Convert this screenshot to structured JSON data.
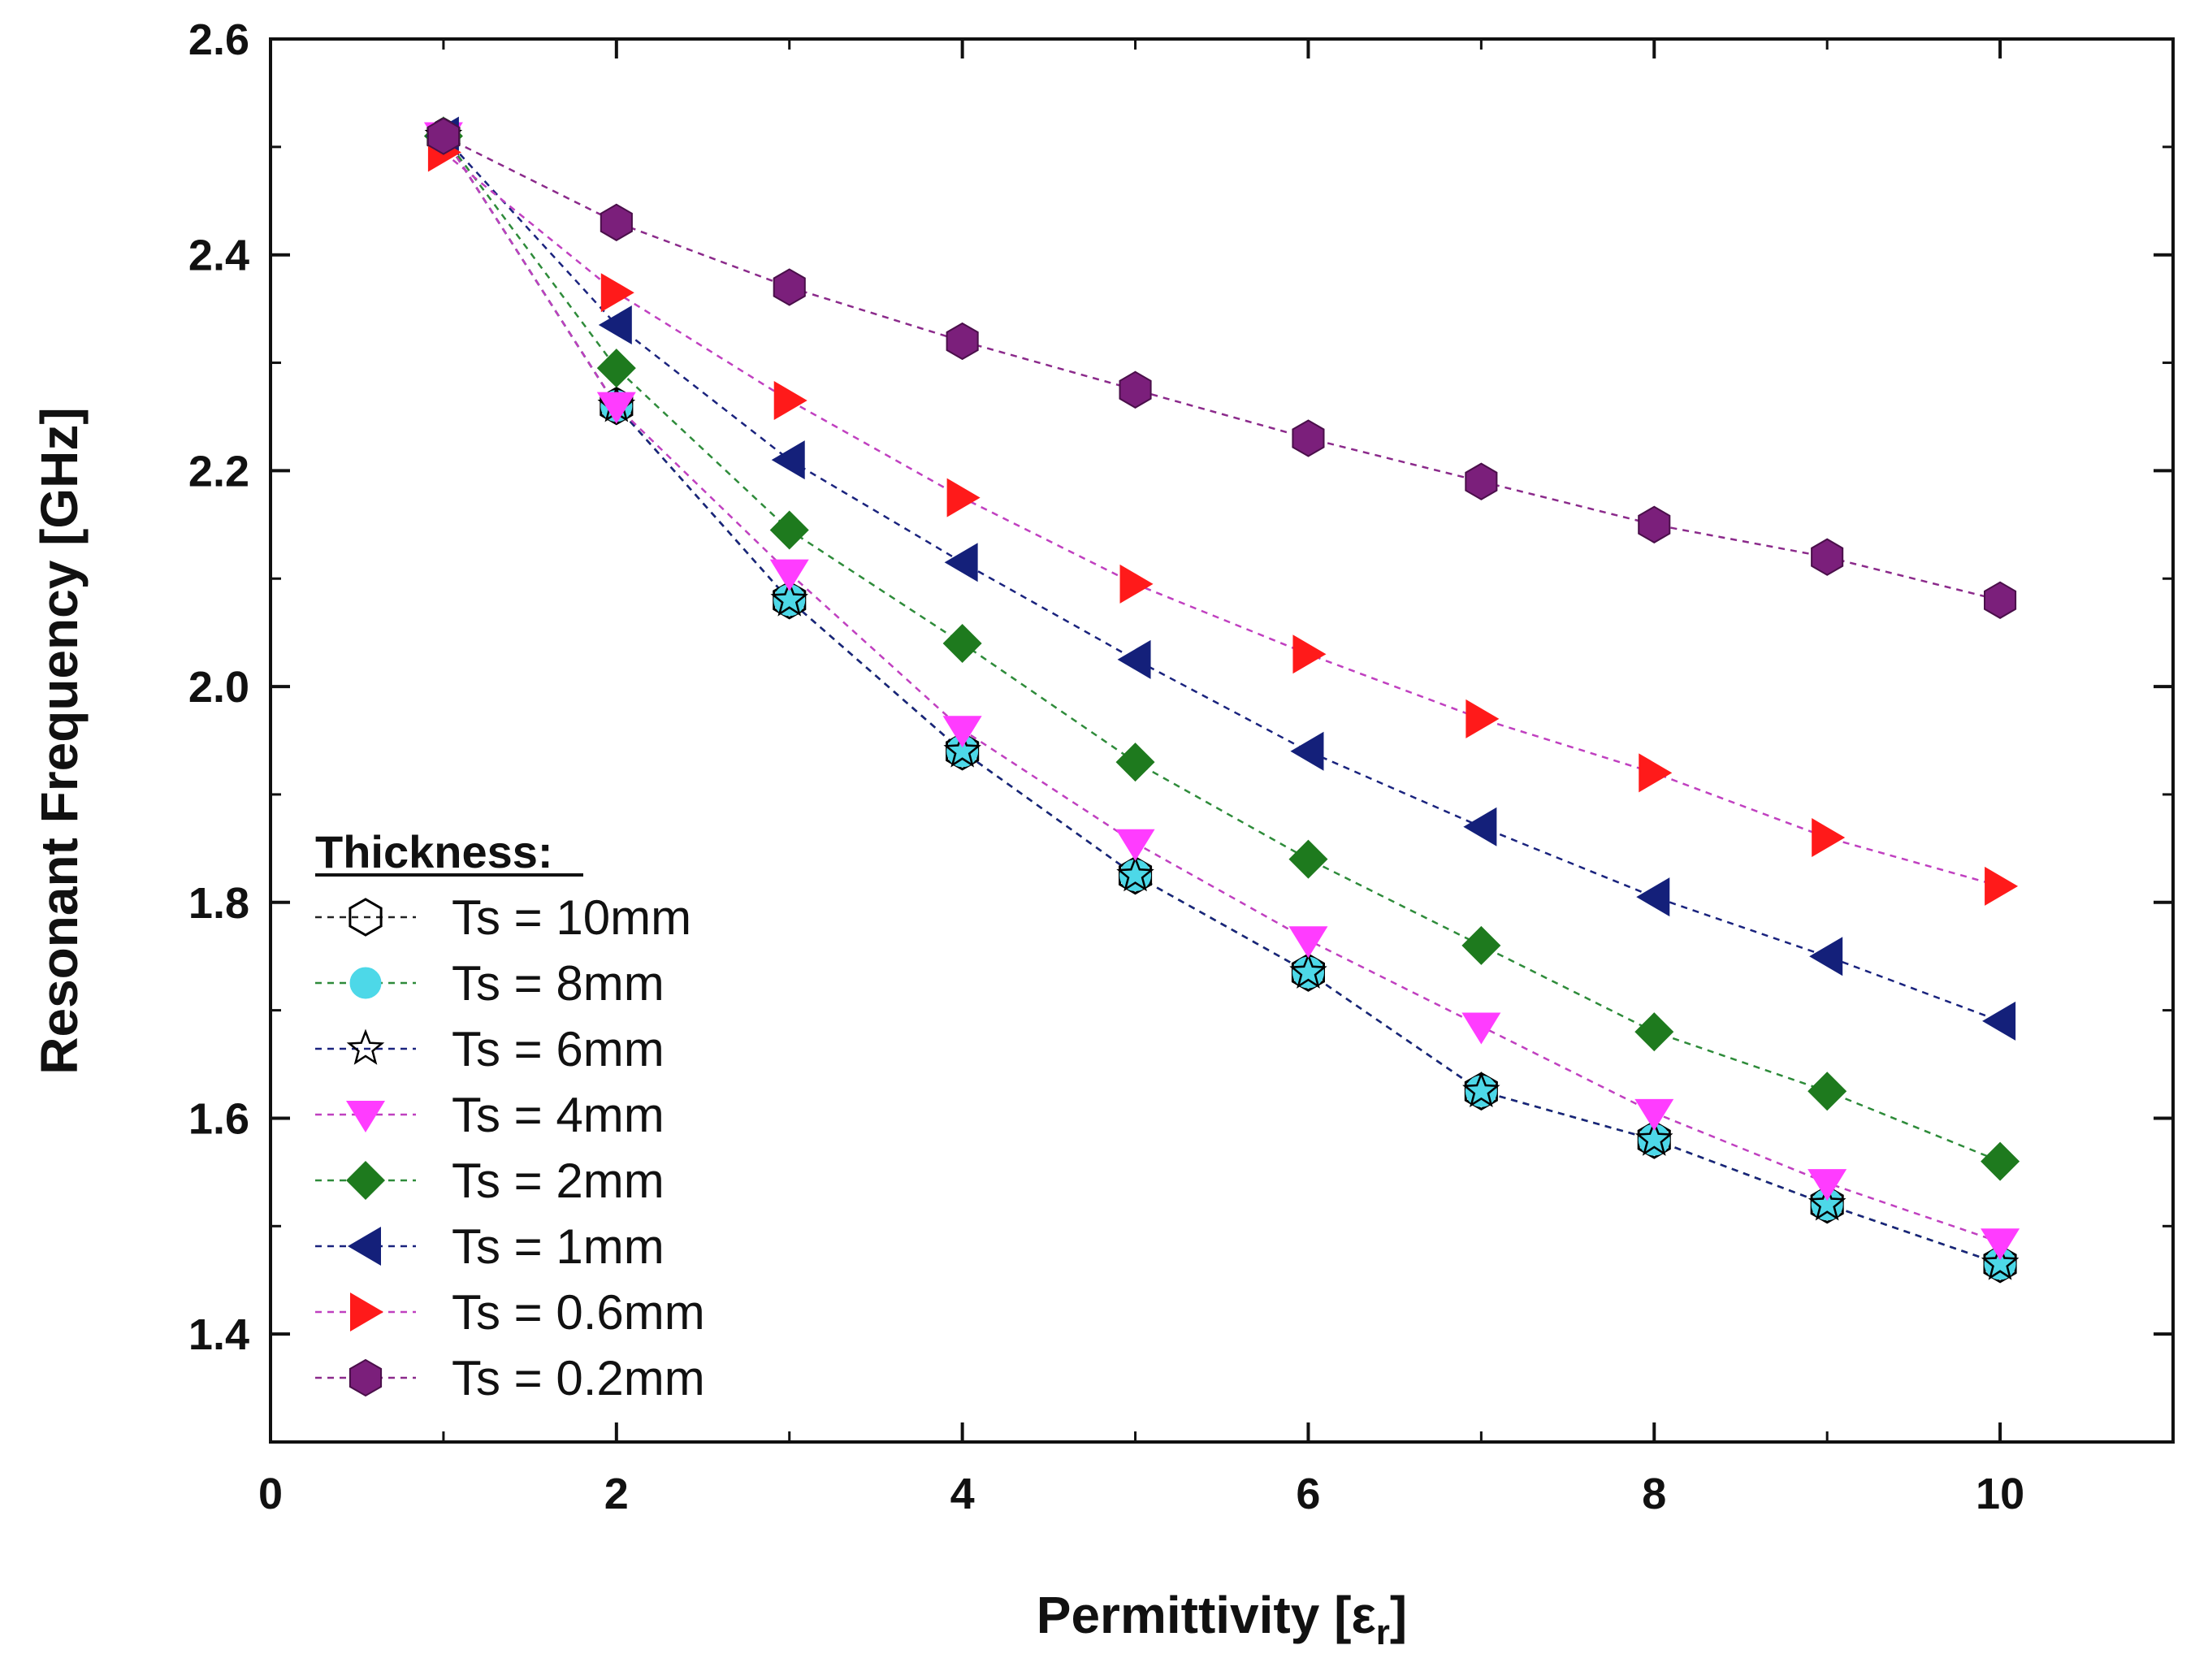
{
  "chart_data": {
    "type": "scatter",
    "xlabel": "Permittivity [ε",
    "xlabel_sub": "r",
    "xlabel_close": "]",
    "ylabel": "Resonant Frequency [GHz]",
    "xlim": [
      0,
      11
    ],
    "ylim": [
      1.3,
      2.6
    ],
    "xticks": [
      "0",
      "2",
      "4",
      "6",
      "8",
      "10"
    ],
    "xtick_values": [
      0,
      2,
      4,
      6,
      8,
      10
    ],
    "yticks": [
      "1.4",
      "1.6",
      "1.8",
      "2.0",
      "2.2",
      "2.4",
      "2.6"
    ],
    "ytick_values": [
      1.4,
      1.6,
      1.8,
      2.0,
      2.2,
      2.4,
      2.6
    ],
    "legend_title": "Thickness:",
    "legend_position": "bottom-left",
    "line_style": "dashed",
    "x": [
      1,
      2,
      3,
      4,
      5,
      6,
      7,
      8,
      9,
      10
    ],
    "series": [
      {
        "name": "Ts = 10mm",
        "marker": "hexagon-open",
        "color": "#000000",
        "line_color": "#222222",
        "values": [
          2.51,
          2.26,
          2.08,
          1.94,
          1.825,
          1.735,
          1.625,
          1.58,
          1.52,
          1.465
        ]
      },
      {
        "name": "Ts = 8mm",
        "marker": "circle",
        "color": "#4dd8e8",
        "line_color": "#2e8b3a",
        "values": [
          2.51,
          2.26,
          2.08,
          1.94,
          1.825,
          1.735,
          1.625,
          1.58,
          1.52,
          1.465
        ]
      },
      {
        "name": "Ts = 6mm",
        "marker": "star-open",
        "color": "#000000",
        "line_color": "#1a237e",
        "values": [
          2.51,
          2.26,
          2.08,
          1.94,
          1.825,
          1.735,
          1.625,
          1.58,
          1.52,
          1.465
        ]
      },
      {
        "name": "Ts = 4mm",
        "marker": "triangle-down",
        "color": "#ff3cff",
        "line_color": "#c040c0",
        "values": [
          2.51,
          2.26,
          2.105,
          1.96,
          1.855,
          1.765,
          1.685,
          1.605,
          1.54,
          1.485
        ]
      },
      {
        "name": "Ts = 2mm",
        "marker": "diamond",
        "color": "#1e7a1e",
        "line_color": "#2e8b3a",
        "values": [
          2.51,
          2.295,
          2.145,
          2.04,
          1.93,
          1.84,
          1.76,
          1.68,
          1.625,
          1.56
        ]
      },
      {
        "name": "Ts = 1mm",
        "marker": "triangle-left",
        "color": "#14207a",
        "line_color": "#1a237e",
        "values": [
          2.51,
          2.335,
          2.21,
          2.115,
          2.025,
          1.94,
          1.87,
          1.805,
          1.75,
          1.69
        ]
      },
      {
        "name": "Ts = 0.6mm",
        "marker": "triangle-right",
        "color": "#ff1a1a",
        "line_color": "#c040c0",
        "values": [
          2.495,
          2.365,
          2.265,
          2.175,
          2.095,
          2.03,
          1.97,
          1.92,
          1.86,
          1.815
        ]
      },
      {
        "name": "Ts = 0.2mm",
        "marker": "hexagon",
        "color": "#7b1f7b",
        "line_color": "#8b2a8b",
        "values": [
          2.51,
          2.43,
          2.37,
          2.32,
          2.275,
          2.23,
          2.19,
          2.15,
          2.12,
          2.08
        ]
      }
    ]
  }
}
